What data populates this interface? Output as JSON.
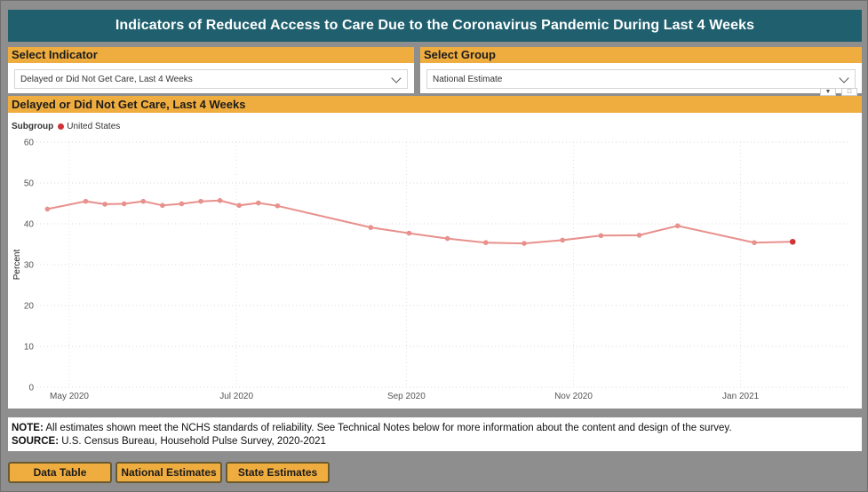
{
  "header": {
    "title": "Indicators of Reduced Access to Care Due to the Coronavirus Pandemic During Last 4 Weeks"
  },
  "indicator_slicer": {
    "label": "Select Indicator",
    "value": "Delayed or Did Not Get Care, Last 4 Weeks"
  },
  "group_slicer": {
    "label": "Select Group",
    "value": "National Estimate"
  },
  "chart_panel": {
    "heading": "Delayed or Did Not Get Care, Last 4 Weeks",
    "legend_label": "Subgroup",
    "legend_item": "United States"
  },
  "chart_data": {
    "type": "line",
    "title": "Delayed or Did Not Get Care, Last 4 Weeks",
    "xlabel": "",
    "ylabel": "Percent",
    "ylim": [
      0,
      60
    ],
    "yticks": [
      0,
      10,
      20,
      30,
      40,
      50,
      60
    ],
    "x_tick_labels": [
      "May 2020",
      "Jul 2020",
      "Sep 2020",
      "Nov 2020",
      "Jan 2021"
    ],
    "x_tick_dates": [
      "2020-05-01",
      "2020-07-01",
      "2020-09-01",
      "2020-11-01",
      "2021-01-01"
    ],
    "x_range": [
      "2020-04-19",
      "2021-02-10"
    ],
    "series": [
      {
        "name": "United States",
        "color": "#e8908c",
        "last_point_color": "#d13438",
        "points": [
          {
            "date": "2020-04-23",
            "value": 43.6
          },
          {
            "date": "2020-05-07",
            "value": 45.5
          },
          {
            "date": "2020-05-14",
            "value": 44.8
          },
          {
            "date": "2020-05-21",
            "value": 44.9
          },
          {
            "date": "2020-05-28",
            "value": 45.5
          },
          {
            "date": "2020-06-04",
            "value": 44.5
          },
          {
            "date": "2020-06-11",
            "value": 44.9
          },
          {
            "date": "2020-06-18",
            "value": 45.5
          },
          {
            "date": "2020-06-25",
            "value": 45.7
          },
          {
            "date": "2020-07-02",
            "value": 44.5
          },
          {
            "date": "2020-07-09",
            "value": 45.1
          },
          {
            "date": "2020-07-16",
            "value": 44.4
          },
          {
            "date": "2020-08-19",
            "value": 39.1
          },
          {
            "date": "2020-09-02",
            "value": 37.7
          },
          {
            "date": "2020-09-16",
            "value": 36.4
          },
          {
            "date": "2020-09-30",
            "value": 35.4
          },
          {
            "date": "2020-10-14",
            "value": 35.2
          },
          {
            "date": "2020-10-28",
            "value": 36.0
          },
          {
            "date": "2020-11-11",
            "value": 37.1
          },
          {
            "date": "2020-11-25",
            "value": 37.2
          },
          {
            "date": "2020-12-09",
            "value": 39.5
          },
          {
            "date": "2021-01-06",
            "value": 35.4
          },
          {
            "date": "2021-01-20",
            "value": 35.6
          }
        ]
      }
    ]
  },
  "notes": {
    "note_label": "NOTE:",
    "note_text": " All estimates shown meet the NCHS standards of reliability. See Technical Notes below for more information about the content and design of the survey.",
    "source_label": "SOURCE:",
    "source_text": " U.S. Census Bureau, Household Pulse Survey, 2020-2021"
  },
  "buttons": {
    "data_table": "Data Table",
    "national": "National Estimates",
    "state": "State Estimates"
  }
}
